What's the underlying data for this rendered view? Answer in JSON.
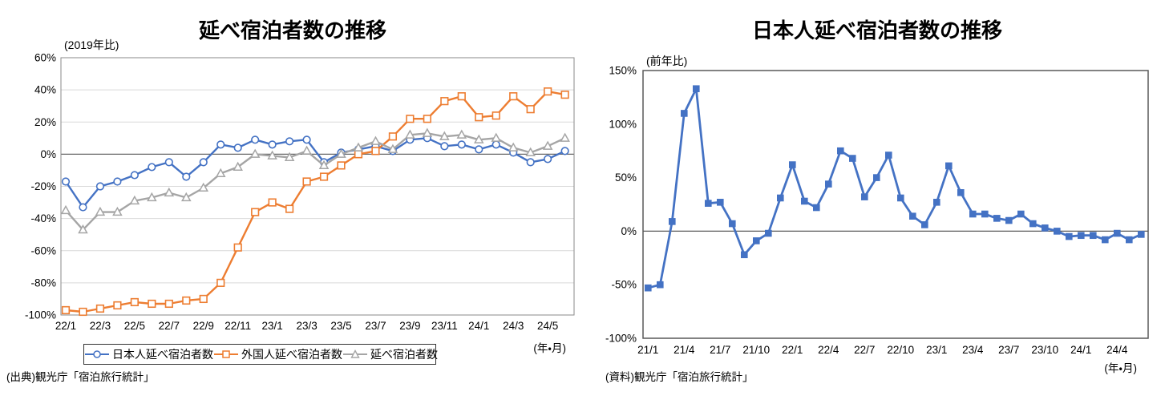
{
  "chart_data": [
    {
      "type": "line",
      "title": "延べ宿泊者数の推移",
      "subtitle": "(2019年比)",
      "x_axis_unit": "(年・月)",
      "source": "(出典)観光庁「宿泊旅行統計」",
      "x": [
        "22/1",
        "22/2",
        "22/3",
        "22/4",
        "22/5",
        "22/6",
        "22/7",
        "22/8",
        "22/9",
        "22/10",
        "22/11",
        "22/12",
        "23/1",
        "23/2",
        "23/3",
        "23/4",
        "23/5",
        "23/6",
        "23/7",
        "23/8",
        "23/9",
        "23/10",
        "23/11",
        "23/12",
        "24/1",
        "24/2",
        "24/3",
        "24/4",
        "24/5",
        "24/6"
      ],
      "x_tick_labels": [
        "22/1",
        "22/3",
        "22/5",
        "22/7",
        "22/9",
        "22/11",
        "23/1",
        "23/3",
        "23/5",
        "23/7",
        "23/9",
        "23/11",
        "24/1",
        "24/3",
        "24/5"
      ],
      "y_ticks": [
        60,
        40,
        20,
        0,
        -20,
        -40,
        -60,
        -80,
        -100
      ],
      "ylim": [
        -100,
        60
      ],
      "y_tick_suffix": "%",
      "grid": true,
      "legend_position": "bottom",
      "series": [
        {
          "key": "japanese",
          "name": "日本人延べ宿泊者数",
          "color": "#4472C4",
          "marker": "circle-open",
          "values": [
            -17,
            -33,
            -20,
            -17,
            -13,
            -8,
            -5,
            -14,
            -5,
            6,
            4,
            9,
            6,
            8,
            9,
            -5,
            1,
            3,
            5,
            2,
            9,
            10,
            5,
            6,
            3,
            6,
            1,
            -5,
            -3,
            2
          ]
        },
        {
          "key": "foreign",
          "name": "外国人延べ宿泊者数",
          "color": "#ED7D31",
          "marker": "square-open",
          "values": [
            -97,
            -98,
            -96,
            -94,
            -92,
            -93,
            -93,
            -91,
            -90,
            -80,
            -58,
            -36,
            -30,
            -34,
            -17,
            -14,
            -7,
            0,
            2,
            11,
            22,
            22,
            33,
            36,
            23,
            24,
            36,
            28,
            39,
            37
          ]
        },
        {
          "key": "total",
          "name": "延べ宿泊者数",
          "color": "#A5A5A5",
          "marker": "triangle-open",
          "values": [
            -35,
            -47,
            -36,
            -36,
            -29,
            -27,
            -24,
            -27,
            -21,
            -12,
            -8,
            0,
            -1,
            -2,
            2,
            -7,
            0,
            4,
            8,
            3,
            12,
            13,
            11,
            12,
            9,
            10,
            4,
            1,
            5,
            10
          ]
        }
      ]
    },
    {
      "type": "line",
      "title": "日本人延べ宿泊者数の推移",
      "subtitle": "(前年比)",
      "x_axis_unit": "(年・月)",
      "source": "(資料)観光庁「宿泊旅行統計」",
      "x": [
        "21/1",
        "21/2",
        "21/3",
        "21/4",
        "21/5",
        "21/6",
        "21/7",
        "21/8",
        "21/9",
        "21/10",
        "21/11",
        "21/12",
        "22/1",
        "22/2",
        "22/3",
        "22/4",
        "22/5",
        "22/6",
        "22/7",
        "22/8",
        "22/9",
        "22/10",
        "22/11",
        "22/12",
        "23/1",
        "23/2",
        "23/3",
        "23/4",
        "23/5",
        "23/6",
        "23/7",
        "23/8",
        "23/9",
        "23/10",
        "23/11",
        "23/12",
        "24/1",
        "24/2",
        "24/3",
        "24/4",
        "24/5",
        "24/6"
      ],
      "x_tick_labels": [
        "21/1",
        "21/4",
        "21/7",
        "21/10",
        "22/1",
        "22/4",
        "22/7",
        "22/10",
        "23/1",
        "23/4",
        "23/7",
        "23/10",
        "24/1",
        "24/4"
      ],
      "y_ticks": [
        150,
        100,
        50,
        0,
        -50,
        -100
      ],
      "ylim": [
        -100,
        150
      ],
      "y_tick_suffix": "%",
      "grid": false,
      "legend_position": "none",
      "series": [
        {
          "key": "japanese-yoy",
          "name": "日本人延べ宿泊者数",
          "color": "#4472C4",
          "marker": "square-filled",
          "values": [
            -53,
            -50,
            9,
            110,
            133,
            26,
            27,
            7,
            -22,
            -9,
            -2,
            31,
            62,
            28,
            22,
            44,
            75,
            68,
            32,
            50,
            71,
            31,
            14,
            6,
            27,
            61,
            36,
            16,
            16,
            12,
            10,
            16,
            7,
            3,
            0,
            -5,
            -4,
            -4,
            -8,
            -2,
            -8,
            -3
          ]
        }
      ]
    }
  ]
}
